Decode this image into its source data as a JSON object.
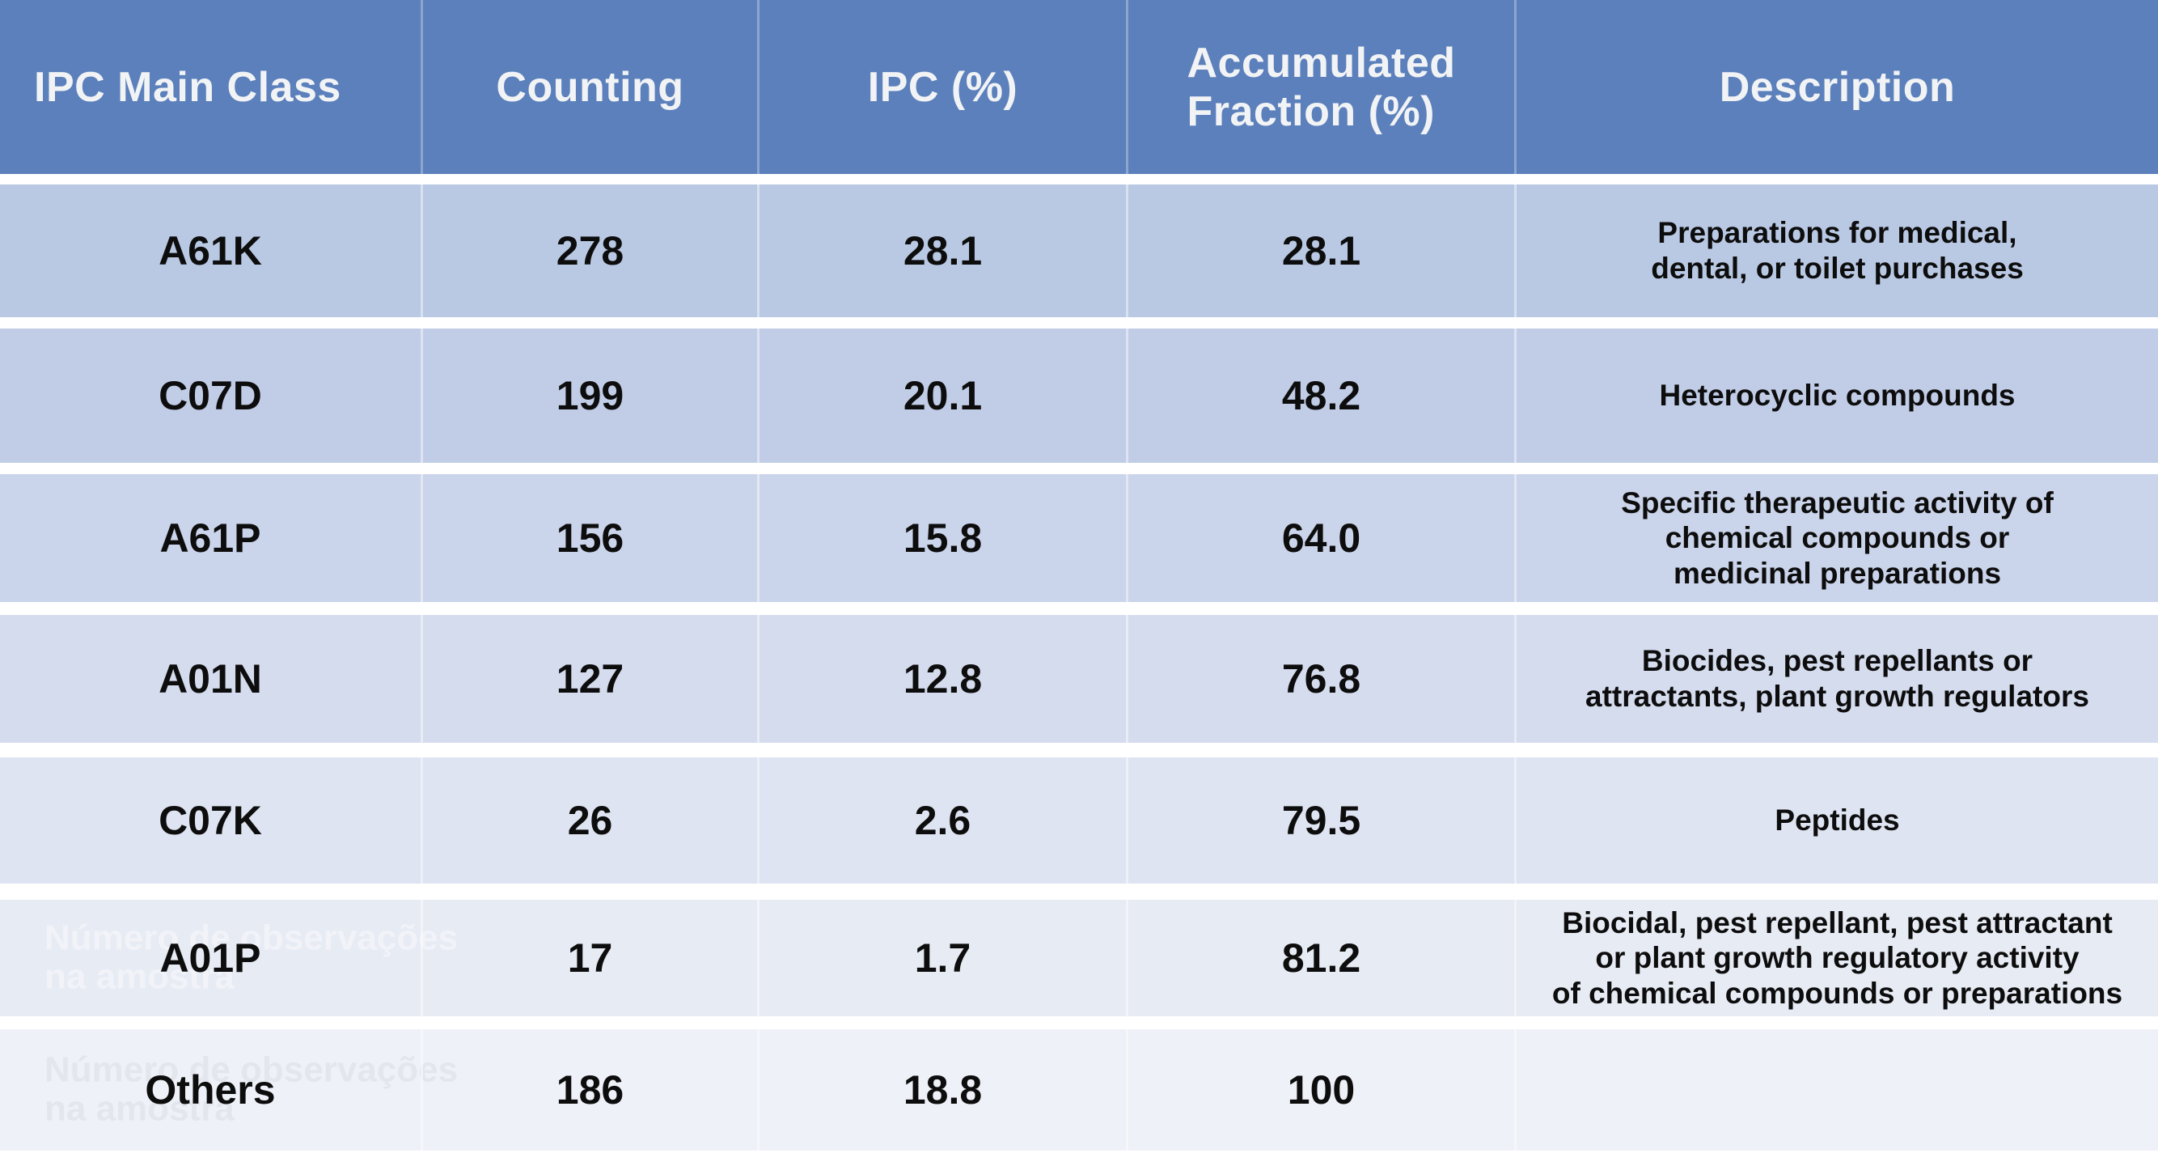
{
  "table": {
    "columns": [
      "IPC Main Class",
      "Counting",
      "IPC (%)",
      "Accumulated\nFraction (%)",
      "Description"
    ],
    "rows": [
      {
        "ipc_class": "A61K",
        "counting": "278",
        "ipc_pct": "28.1",
        "accumulated_pct": "28.1",
        "description": "Preparations for medical,\ndental, or toilet purchases",
        "watermark": false
      },
      {
        "ipc_class": "C07D",
        "counting": "199",
        "ipc_pct": "20.1",
        "accumulated_pct": "48.2",
        "description": "Heterocyclic compounds",
        "watermark": false
      },
      {
        "ipc_class": "A61P",
        "counting": "156",
        "ipc_pct": "15.8",
        "accumulated_pct": "64.0",
        "description": "Specific therapeutic activity of\nchemical compounds or\nmedicinal preparations",
        "watermark": false
      },
      {
        "ipc_class": "A01N",
        "counting": "127",
        "ipc_pct": "12.8",
        "accumulated_pct": "76.8",
        "description": "Biocides, pest repellants or\nattractants, plant growth regulators",
        "watermark": false
      },
      {
        "ipc_class": "C07K",
        "counting": "26",
        "ipc_pct": "2.6",
        "accumulated_pct": "79.5",
        "description": "Peptides",
        "watermark": false
      },
      {
        "ipc_class": "A01P",
        "counting": "17",
        "ipc_pct": "1.7",
        "accumulated_pct": "81.2",
        "description": "Biocidal, pest repellant, pest attractant\nor plant growth regulatory activity\nof chemical compounds or preparations",
        "watermark": true
      },
      {
        "ipc_class": "Others",
        "counting": "186",
        "ipc_pct": "18.8",
        "accumulated_pct": "100",
        "description": "",
        "watermark": true
      }
    ]
  },
  "watermark": {
    "text": "Número de observações\nna amostra"
  },
  "colors": {
    "header_bg": "#5B80BC",
    "header_text": "#F2F3F5",
    "cell_text": "#0D0D0D",
    "row_gap": "#FFFFFF",
    "row_backgrounds": [
      "#B9C9E4",
      "#C1CDE7",
      "#CAD4EA",
      "#D4DCEE",
      "#DEE4F1",
      "#E7EBF4",
      "#EEF1F8"
    ],
    "watermark_on_a01p_row": "#F1F3F8",
    "watermark_on_others_row": "#E3E7ED"
  },
  "chart_data": {
    "type": "table",
    "columns": [
      "IPC Main Class",
      "Counting",
      "IPC (%)",
      "Accumulated Fraction (%)",
      "Description"
    ],
    "rows": [
      [
        "A61K",
        278,
        28.1,
        28.1,
        "Preparations for medical, dental, or toilet purchases"
      ],
      [
        "C07D",
        199,
        20.1,
        48.2,
        "Heterocyclic compounds"
      ],
      [
        "A61P",
        156,
        15.8,
        64.0,
        "Specific therapeutic activity of chemical compounds or medicinal preparations"
      ],
      [
        "A01N",
        127,
        12.8,
        76.8,
        "Biocides, pest repellants or attractants, plant growth regulators"
      ],
      [
        "C07K",
        26,
        2.6,
        79.5,
        "Peptides"
      ],
      [
        "A01P",
        17,
        1.7,
        81.2,
        "Biocidal, pest repellant, pest attractant or plant growth regulatory activity of chemical compounds or preparations"
      ],
      [
        "Others",
        186,
        18.8,
        100,
        ""
      ]
    ],
    "title": "",
    "watermark_text": "Número de observações na amostra"
  }
}
